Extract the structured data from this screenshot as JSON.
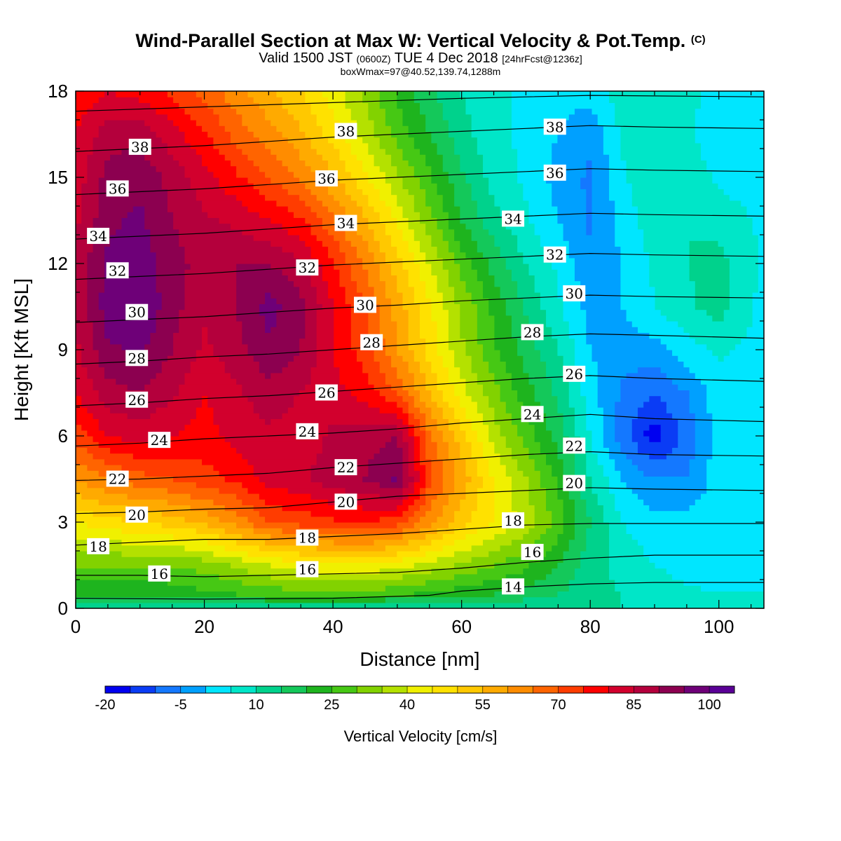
{
  "header": {
    "title": "Wind-Parallel Section at Max W: Vertical Velocity & Pot.Temp.",
    "copyright": "(C)",
    "valid_prefix": "Valid 1500 JST",
    "valid_zulu": "(0600Z)",
    "valid_date": "TUE 4 Dec 2018",
    "forecast": "[24hrFcst@1236z]",
    "box_info": "boxWmax=97@40.52,139.74,1288m"
  },
  "chart_data": {
    "type": "heatmap",
    "title": "Wind-Parallel Section at Max W: Vertical Velocity & Pot.Temp.",
    "xlabel": "Distance [nm]",
    "ylabel": "Height [Kft MSL]",
    "xlim": [
      0,
      107
    ],
    "ylim": [
      0,
      18
    ],
    "x_ticks": [
      0,
      20,
      40,
      60,
      80,
      100
    ],
    "y_ticks": [
      0,
      3,
      6,
      9,
      12,
      15,
      18
    ],
    "grid": false,
    "colorbar": {
      "title": "Vertical Velocity [cm/s]",
      "min": -20,
      "step": 5,
      "tick_values": [
        -20,
        -5,
        10,
        25,
        40,
        55,
        70,
        85,
        100
      ],
      "colors": [
        "#0000f0",
        "#0a3cf5",
        "#1478ff",
        "#00a0ff",
        "#00e6ff",
        "#00e6c8",
        "#00d28c",
        "#14c85a",
        "#1eb41e",
        "#46c814",
        "#82d200",
        "#b4e100",
        "#f0f000",
        "#ffe100",
        "#ffc800",
        "#ffaa00",
        "#ff8c00",
        "#ff6400",
        "#ff3c00",
        "#ff0000",
        "#d2002d",
        "#b4003c",
        "#8c0050",
        "#6e0078",
        "#5a0096"
      ]
    },
    "velocity_field": {
      "x": [
        0,
        5,
        10,
        15,
        20,
        25,
        30,
        35,
        40,
        45,
        50,
        55,
        60,
        65,
        70,
        75,
        80,
        85,
        90,
        95,
        100,
        107
      ],
      "heights": [
        {
          "y": 0,
          "v": [
            10,
            10,
            10,
            10,
            10,
            10,
            10,
            10,
            10,
            10,
            10,
            10,
            10,
            10,
            10,
            10,
            10,
            10,
            10,
            10,
            10,
            10
          ]
        },
        {
          "y": 0.5,
          "v": [
            20,
            20,
            20,
            22,
            24,
            25,
            27,
            28,
            28,
            28,
            26,
            24,
            22,
            20,
            18,
            15,
            12,
            10,
            8,
            6,
            5,
            5
          ]
        },
        {
          "y": 1.5,
          "v": [
            30,
            30,
            30,
            30,
            32,
            36,
            40,
            42,
            44,
            44,
            42,
            38,
            34,
            30,
            26,
            20,
            12,
            8,
            5,
            3,
            3,
            3
          ]
        },
        {
          "y": 3,
          "v": [
            45,
            48,
            50,
            52,
            56,
            62,
            70,
            72,
            74,
            75,
            72,
            62,
            52,
            45,
            38,
            28,
            15,
            5,
            2,
            2,
            2,
            2
          ]
        },
        {
          "y": 4.5,
          "v": [
            60,
            65,
            68,
            70,
            73,
            76,
            82,
            84,
            88,
            90,
            96,
            72,
            58,
            45,
            35,
            24,
            10,
            0,
            -5,
            -5,
            3,
            3
          ]
        },
        {
          "y": 6,
          "v": [
            72,
            80,
            82,
            80,
            78,
            82,
            84,
            82,
            86,
            88,
            90,
            66,
            52,
            38,
            28,
            18,
            5,
            -8,
            -18,
            -8,
            2,
            3
          ]
        },
        {
          "y": 7.5,
          "v": [
            80,
            88,
            90,
            86,
            80,
            84,
            88,
            85,
            82,
            78,
            70,
            55,
            42,
            32,
            22,
            14,
            2,
            -6,
            -10,
            -5,
            3,
            3
          ]
        },
        {
          "y": 9,
          "v": [
            84,
            94,
            96,
            90,
            84,
            88,
            94,
            90,
            80,
            72,
            60,
            48,
            36,
            26,
            18,
            10,
            0,
            -3,
            -2,
            3,
            6,
            3
          ]
        },
        {
          "y": 10.5,
          "v": [
            85,
            98,
            100,
            92,
            86,
            90,
            97,
            92,
            80,
            70,
            58,
            46,
            34,
            24,
            14,
            6,
            -2,
            0,
            5,
            9,
            12,
            3
          ]
        },
        {
          "y": 12,
          "v": [
            86,
            96,
            98,
            92,
            88,
            90,
            90,
            86,
            76,
            64,
            52,
            40,
            28,
            18,
            10,
            4,
            -4,
            0,
            6,
            10,
            12,
            4
          ]
        },
        {
          "y": 13.5,
          "v": [
            84,
            94,
            96,
            90,
            86,
            84,
            80,
            76,
            66,
            56,
            44,
            32,
            20,
            12,
            6,
            0,
            -6,
            2,
            8,
            10,
            8,
            4
          ]
        },
        {
          "y": 15,
          "v": [
            82,
            92,
            94,
            88,
            82,
            76,
            70,
            64,
            56,
            46,
            36,
            26,
            16,
            8,
            4,
            -2,
            -6,
            4,
            10,
            8,
            4,
            2
          ]
        },
        {
          "y": 16.5,
          "v": [
            80,
            88,
            88,
            82,
            76,
            68,
            62,
            56,
            48,
            38,
            28,
            20,
            12,
            6,
            4,
            0,
            -4,
            6,
            10,
            6,
            2,
            2
          ]
        },
        {
          "y": 18,
          "v": [
            76,
            80,
            78,
            74,
            68,
            62,
            56,
            50,
            42,
            34,
            24,
            16,
            10,
            6,
            4,
            2,
            2,
            8,
            10,
            6,
            4,
            4
          ]
        }
      ]
    },
    "theta_contours": [
      {
        "value": 14,
        "points": [
          [
            0,
            0.35
          ],
          [
            20,
            0.32
          ],
          [
            40,
            0.35
          ],
          [
            55,
            0.45
          ],
          [
            60,
            0.6
          ],
          [
            70,
            0.75
          ],
          [
            80,
            0.85
          ],
          [
            90,
            0.9
          ],
          [
            107,
            0.9
          ]
        ]
      },
      {
        "value": 16,
        "points": [
          [
            0,
            1.15
          ],
          [
            10,
            1.15
          ],
          [
            20,
            1.1
          ],
          [
            30,
            1.15
          ],
          [
            40,
            1.2
          ],
          [
            50,
            1.25
          ],
          [
            60,
            1.4
          ],
          [
            70,
            1.6
          ],
          [
            80,
            1.75
          ],
          [
            90,
            1.85
          ],
          [
            107,
            1.85
          ]
        ]
      },
      {
        "value": 18,
        "points": [
          [
            0,
            2.2
          ],
          [
            10,
            2.3
          ],
          [
            20,
            2.4
          ],
          [
            30,
            2.4
          ],
          [
            40,
            2.5
          ],
          [
            50,
            2.6
          ],
          [
            60,
            2.75
          ],
          [
            70,
            2.9
          ],
          [
            80,
            2.95
          ],
          [
            90,
            2.95
          ],
          [
            107,
            2.95
          ]
        ]
      },
      {
        "value": 20,
        "points": [
          [
            0,
            3.3
          ],
          [
            10,
            3.35
          ],
          [
            20,
            3.45
          ],
          [
            30,
            3.5
          ],
          [
            40,
            3.7
          ],
          [
            50,
            3.9
          ],
          [
            60,
            4.0
          ],
          [
            70,
            4.1
          ],
          [
            80,
            4.2
          ],
          [
            90,
            4.15
          ],
          [
            107,
            4.1
          ]
        ]
      },
      {
        "value": 22,
        "points": [
          [
            0,
            4.45
          ],
          [
            10,
            4.5
          ],
          [
            20,
            4.6
          ],
          [
            30,
            4.7
          ],
          [
            40,
            4.9
          ],
          [
            50,
            5.05
          ],
          [
            60,
            5.2
          ],
          [
            70,
            5.35
          ],
          [
            80,
            5.45
          ],
          [
            90,
            5.35
          ],
          [
            107,
            5.3
          ]
        ]
      },
      {
        "value": 24,
        "points": [
          [
            0,
            5.65
          ],
          [
            10,
            5.75
          ],
          [
            20,
            5.9
          ],
          [
            30,
            6.0
          ],
          [
            40,
            6.1
          ],
          [
            50,
            6.25
          ],
          [
            60,
            6.45
          ],
          [
            70,
            6.6
          ],
          [
            80,
            6.75
          ],
          [
            90,
            6.6
          ],
          [
            107,
            6.5
          ]
        ]
      },
      {
        "value": 26,
        "points": [
          [
            0,
            7.05
          ],
          [
            10,
            7.15
          ],
          [
            20,
            7.3
          ],
          [
            30,
            7.4
          ],
          [
            40,
            7.55
          ],
          [
            50,
            7.7
          ],
          [
            60,
            7.85
          ],
          [
            70,
            8.0
          ],
          [
            80,
            8.1
          ],
          [
            90,
            8.0
          ],
          [
            107,
            7.9
          ]
        ]
      },
      {
        "value": 28,
        "points": [
          [
            0,
            8.5
          ],
          [
            10,
            8.6
          ],
          [
            20,
            8.75
          ],
          [
            30,
            8.85
          ],
          [
            40,
            9.0
          ],
          [
            50,
            9.15
          ],
          [
            60,
            9.3
          ],
          [
            70,
            9.45
          ],
          [
            80,
            9.55
          ],
          [
            90,
            9.5
          ],
          [
            107,
            9.4
          ]
        ]
      },
      {
        "value": 30,
        "points": [
          [
            0,
            9.95
          ],
          [
            10,
            10.05
          ],
          [
            20,
            10.15
          ],
          [
            30,
            10.3
          ],
          [
            40,
            10.45
          ],
          [
            50,
            10.55
          ],
          [
            60,
            10.7
          ],
          [
            70,
            10.8
          ],
          [
            80,
            10.9
          ],
          [
            90,
            10.85
          ],
          [
            107,
            10.8
          ]
        ]
      },
      {
        "value": 32,
        "points": [
          [
            0,
            11.45
          ],
          [
            10,
            11.55
          ],
          [
            20,
            11.65
          ],
          [
            30,
            11.8
          ],
          [
            40,
            11.95
          ],
          [
            50,
            12.05
          ],
          [
            60,
            12.15
          ],
          [
            70,
            12.25
          ],
          [
            80,
            12.35
          ],
          [
            90,
            12.3
          ],
          [
            107,
            12.25
          ]
        ]
      },
      {
        "value": 34,
        "points": [
          [
            0,
            12.85
          ],
          [
            10,
            12.95
          ],
          [
            20,
            13.05
          ],
          [
            30,
            13.2
          ],
          [
            40,
            13.35
          ],
          [
            50,
            13.45
          ],
          [
            60,
            13.55
          ],
          [
            70,
            13.65
          ],
          [
            80,
            13.75
          ],
          [
            90,
            13.7
          ],
          [
            107,
            13.65
          ]
        ]
      },
      {
        "value": 36,
        "points": [
          [
            0,
            14.4
          ],
          [
            10,
            14.5
          ],
          [
            20,
            14.6
          ],
          [
            30,
            14.75
          ],
          [
            40,
            14.9
          ],
          [
            50,
            15.0
          ],
          [
            60,
            15.1
          ],
          [
            70,
            15.2
          ],
          [
            80,
            15.3
          ],
          [
            90,
            15.25
          ],
          [
            107,
            15.2
          ]
        ]
      },
      {
        "value": 38,
        "points": [
          [
            0,
            15.9
          ],
          [
            10,
            16.0
          ],
          [
            20,
            16.1
          ],
          [
            30,
            16.25
          ],
          [
            40,
            16.4
          ],
          [
            50,
            16.5
          ],
          [
            60,
            16.6
          ],
          [
            70,
            16.7
          ],
          [
            80,
            16.8
          ],
          [
            90,
            16.75
          ],
          [
            107,
            16.7
          ]
        ]
      },
      {
        "value": 40,
        "points": [
          [
            0,
            17.3
          ],
          [
            20,
            17.45
          ],
          [
            40,
            17.6
          ],
          [
            60,
            17.75
          ],
          [
            80,
            17.85
          ],
          [
            107,
            17.8
          ]
        ]
      }
    ],
    "contour_labels": [
      {
        "text": "38",
        "x": 10,
        "y": 16.05
      },
      {
        "text": "36",
        "x": 6.5,
        "y": 14.6
      },
      {
        "text": "34",
        "x": 3.5,
        "y": 12.95
      },
      {
        "text": "32",
        "x": 6.5,
        "y": 11.75
      },
      {
        "text": "30",
        "x": 9.5,
        "y": 10.3
      },
      {
        "text": "28",
        "x": 9.5,
        "y": 8.7
      },
      {
        "text": "26",
        "x": 9.5,
        "y": 7.25
      },
      {
        "text": "24",
        "x": 13,
        "y": 5.85
      },
      {
        "text": "22",
        "x": 6.5,
        "y": 4.5
      },
      {
        "text": "20",
        "x": 9.5,
        "y": 3.25
      },
      {
        "text": "18",
        "x": 3.5,
        "y": 2.15
      },
      {
        "text": "16",
        "x": 13,
        "y": 1.2
      },
      {
        "text": "38",
        "x": 42,
        "y": 16.6
      },
      {
        "text": "36",
        "x": 39,
        "y": 14.95
      },
      {
        "text": "34",
        "x": 42,
        "y": 13.4
      },
      {
        "text": "32",
        "x": 36,
        "y": 11.85
      },
      {
        "text": "30",
        "x": 45,
        "y": 10.55
      },
      {
        "text": "28",
        "x": 46,
        "y": 9.25
      },
      {
        "text": "26",
        "x": 39,
        "y": 7.5
      },
      {
        "text": "24",
        "x": 36,
        "y": 6.15
      },
      {
        "text": "22",
        "x": 42,
        "y": 4.9
      },
      {
        "text": "20",
        "x": 42,
        "y": 3.7
      },
      {
        "text": "18",
        "x": 36,
        "y": 2.45
      },
      {
        "text": "16",
        "x": 36,
        "y": 1.35
      },
      {
        "text": "38",
        "x": 74.5,
        "y": 16.75
      },
      {
        "text": "36",
        "x": 74.5,
        "y": 15.15
      },
      {
        "text": "34",
        "x": 68,
        "y": 13.55
      },
      {
        "text": "32",
        "x": 74.5,
        "y": 12.3
      },
      {
        "text": "30",
        "x": 77.5,
        "y": 10.95
      },
      {
        "text": "28",
        "x": 71,
        "y": 9.6
      },
      {
        "text": "26",
        "x": 77.5,
        "y": 8.15
      },
      {
        "text": "24",
        "x": 71,
        "y": 6.75
      },
      {
        "text": "22",
        "x": 77.5,
        "y": 5.65
      },
      {
        "text": "20",
        "x": 77.5,
        "y": 4.35
      },
      {
        "text": "18",
        "x": 68,
        "y": 3.05
      },
      {
        "text": "16",
        "x": 71,
        "y": 1.95
      },
      {
        "text": "14",
        "x": 68,
        "y": 0.75
      }
    ]
  }
}
